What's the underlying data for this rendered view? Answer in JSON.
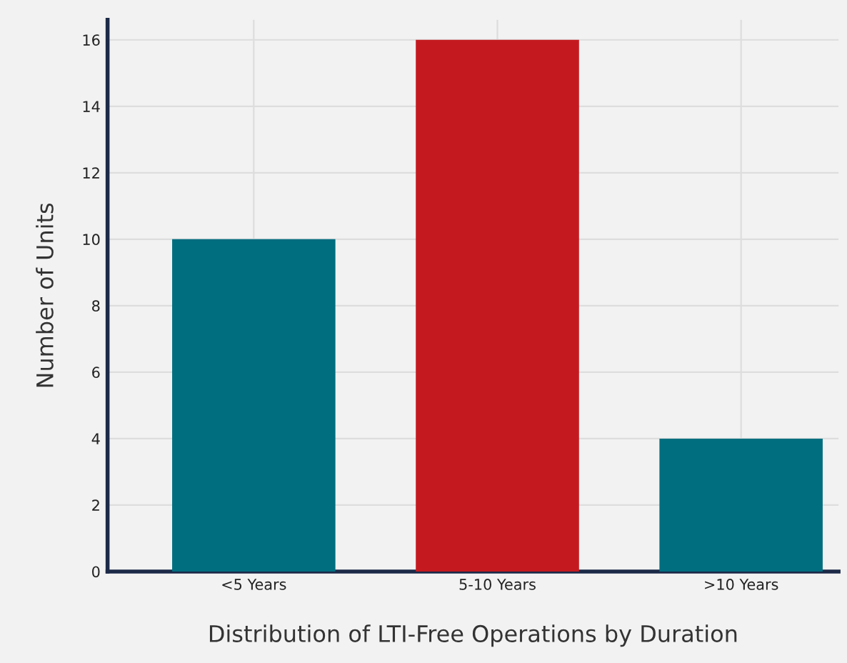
{
  "chart_data": {
    "type": "bar",
    "xlabel": "Distribution of LTI-Free Operations by Duration",
    "ylabel": "Number of Units",
    "categories": [
      "<5 Years",
      "5-10 Years",
      ">10 Years"
    ],
    "values": [
      10,
      16,
      4
    ],
    "colors": [
      "#006e7f",
      "#c41a1f",
      "#006e7f"
    ],
    "ylim": [
      0,
      16.6
    ],
    "yticks": [
      0,
      2,
      4,
      6,
      8,
      10,
      12,
      14,
      16
    ],
    "grid": true
  }
}
